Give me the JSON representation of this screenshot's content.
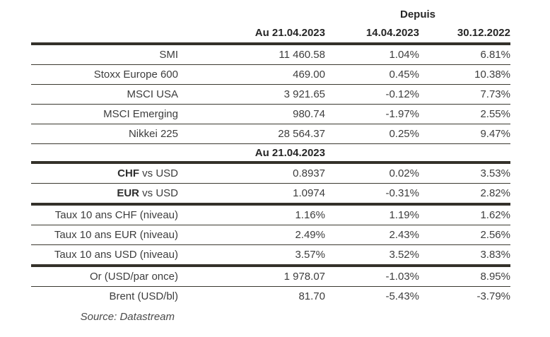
{
  "colors": {
    "thick_rule": "#34312a",
    "thin_rule": "#3a382f",
    "text": "#3d3d3d",
    "header_text": "#262626",
    "background": "#ffffff"
  },
  "header": {
    "depuis": "Depuis",
    "col_value": "Au 21.04.2023",
    "col_since1": "14.04.2023",
    "col_since2": "30.12.2022"
  },
  "mid_header": {
    "col_value": "Au 21.04.2023"
  },
  "rows": [
    {
      "label": "SMI",
      "value": "11 460.58",
      "since1": "1.04%",
      "since2": "6.81%"
    },
    {
      "label": "Stoxx Europe 600",
      "value": "469.00",
      "since1": "0.45%",
      "since2": "10.38%"
    },
    {
      "label": "MSCI USA",
      "value": "3 921.65",
      "since1": "-0.12%",
      "since2": "7.73%"
    },
    {
      "label": "MSCI Emerging",
      "value": "980.74",
      "since1": "-1.97%",
      "since2": "2.55%"
    },
    {
      "label": "Nikkei 225",
      "value": "28 564.37",
      "since1": "0.25%",
      "since2": "9.47%"
    },
    {
      "label_bold": "CHF",
      "label_rest": " vs USD",
      "value": "0.8937",
      "since1": "0.02%",
      "since2": "3.53%"
    },
    {
      "label_bold": "EUR",
      "label_rest": " vs USD",
      "value": "1.0974",
      "since1": "-0.31%",
      "since2": "2.82%"
    },
    {
      "label": "Taux 10 ans CHF (niveau)",
      "value": "1.16%",
      "since1": "1.19%",
      "since2": "1.62%"
    },
    {
      "label": "Taux 10 ans EUR (niveau)",
      "value": "2.49%",
      "since1": "2.43%",
      "since2": "2.56%"
    },
    {
      "label": "Taux 10 ans USD (niveau)",
      "value": "3.57%",
      "since1": "3.52%",
      "since2": "3.83%"
    },
    {
      "label": "Or (USD/par once)",
      "value": "1 978.07",
      "since1": "-1.03%",
      "since2": "8.95%"
    },
    {
      "label": "Brent (USD/bl)",
      "value": "81.70",
      "since1": "-5.43%",
      "since2": "-3.79%"
    }
  ],
  "source": "Source: Datastream"
}
